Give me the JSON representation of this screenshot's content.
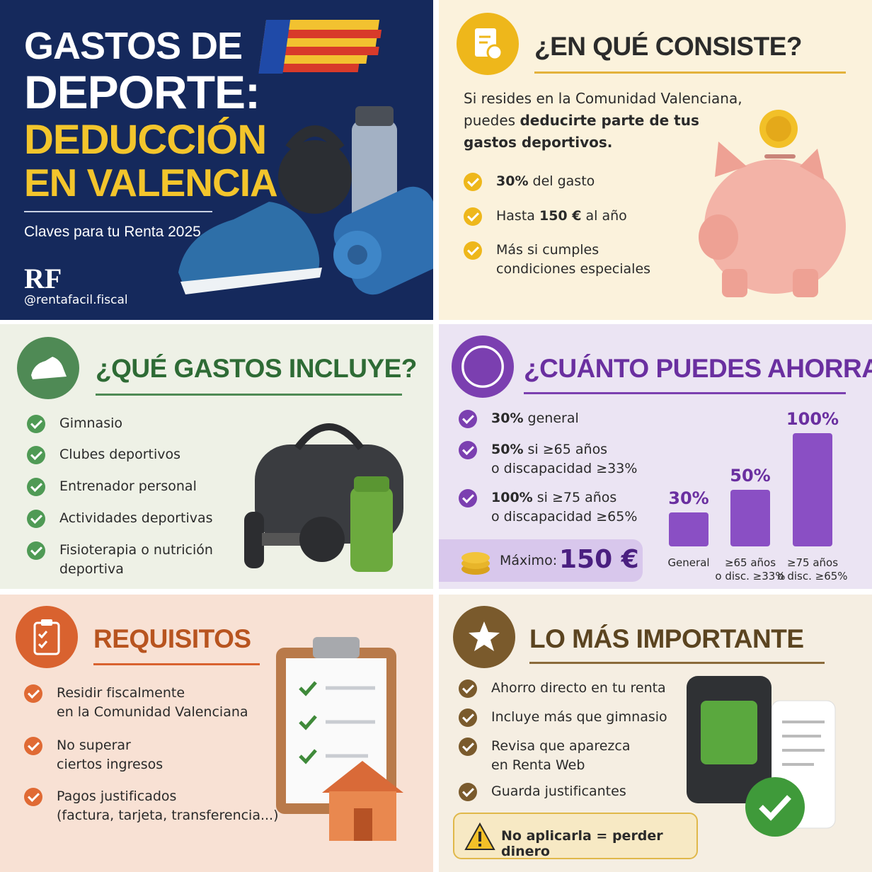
{
  "hero": {
    "title_lines": [
      "GASTOS DE",
      "DEPORTE:"
    ],
    "highlight_lines": [
      "DEDUCCIÓN",
      "EN VALENCIA"
    ],
    "subtitle": "Claves para tu Renta 2025",
    "logo": "RF",
    "handle": "@rentafacil.fiscal"
  },
  "consiste": {
    "title": "¿EN QUÉ CONSISTE?",
    "intro": [
      "Si resides en la Comunidad Valenciana, puedes ",
      "deducirte parte de tus gastos deportivos."
    ],
    "items": [
      [
        "30%",
        " del gasto"
      ],
      [
        "Hasta ",
        "150 €",
        " al año"
      ],
      [
        "Más si cumples condiciones especiales"
      ]
    ]
  },
  "incluye": {
    "title": "¿QUÉ GASTOS INCLUYE?",
    "items": [
      [
        "Gimnasio"
      ],
      [
        "Clubes deportivos"
      ],
      [
        "Entrenador personal"
      ],
      [
        "Actividades deportivas"
      ],
      [
        "Fisioterapia o nutrición",
        "deportiva"
      ]
    ]
  },
  "ahorro": {
    "title": "¿CUÁNTO PUEDES AHORRAR?",
    "items": [
      {
        "lead": "30%",
        "text": " general"
      },
      {
        "lead": "50%",
        "text": " si ≥65 años",
        "detail": "o discapacidad ≥33%"
      },
      {
        "lead": "100%",
        "text": " si ≥75 años",
        "detail": "o discapacidad ≥65%"
      }
    ],
    "max_label": "Máximo:",
    "max_value": "150 €",
    "bars": [
      {
        "value": 30,
        "label": "30%",
        "category": [
          "General"
        ]
      },
      {
        "value": 50,
        "label": "50%",
        "category": [
          "≥65 años",
          "o disc. ≥33%"
        ]
      },
      {
        "value": 100,
        "label": "100%",
        "category": [
          "≥75 años",
          "o disc. ≥65%"
        ]
      }
    ],
    "bar_color": "#8a4fc4"
  },
  "requisitos": {
    "title": "REQUISITOS",
    "items": [
      [
        "Residir fiscalmente",
        "en la Comunidad Valenciana"
      ],
      [
        "No superar",
        "ciertos ingresos"
      ],
      [
        "Pagos justificados",
        "(factura, tarjeta, transferencia...)"
      ]
    ]
  },
  "importante": {
    "title": "LO MÁS IMPORTANTE",
    "items": [
      [
        "Ahorro directo en tu renta"
      ],
      [
        "Incluye más que gimnasio"
      ],
      [
        "Revisa que aparezca",
        "en Renta Web"
      ],
      [
        "Guarda justificantes"
      ]
    ],
    "warning": "No aplicarla = perder dinero"
  }
}
